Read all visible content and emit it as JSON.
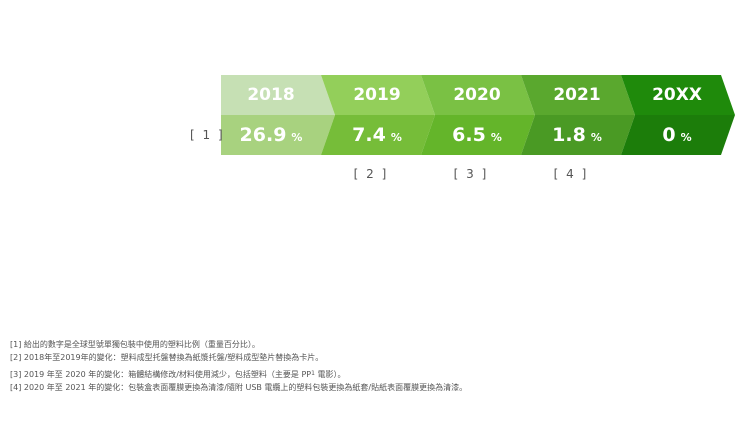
{
  "chart_data": {
    "type": "table",
    "years": [
      "2018",
      "2019",
      "2020",
      "2021",
      "20XX"
    ],
    "values": [
      "26.9",
      "7.4",
      "6.5",
      "1.8",
      "0"
    ],
    "unit": "%",
    "colors": {
      "top": [
        "#c6e0b4",
        "#93cf5a",
        "#7ac144",
        "#5aa82e",
        "#1f8a0b"
      ],
      "bottom": [
        "#a8d27f",
        "#76bd39",
        "#64b52a",
        "#4a9a24",
        "#1c7d0a"
      ]
    }
  },
  "row_label": "[ 1 ]",
  "note_refs": [
    {
      "label": "[ 2 ]",
      "column": 1
    },
    {
      "label": "[ 3 ]",
      "column": 2
    },
    {
      "label": "[ 4 ]",
      "column": 3
    }
  ],
  "footnotes": {
    "f1": "[1] 給出的數字是全球型號單獨包裝中使用的塑料比例（重量百分比）。",
    "f2": "[2] 2018年至2019年的變化：塑料成型托盤替換為紙漿托盤/塑料成型墊片替換為卡片。",
    "f3_pre": "[3] 2019 年至 2020 年的變化：箱體結構修改/材料使用減少，包括塑料（主要是 PP",
    "f3_sup": "1",
    "f3_post": " 電影）。",
    "f4": "[4] 2020 年至 2021 年的變化：包裝盒表面覆膜更換為清漆/隨附 USB 電纜上的塑料包裝更換為紙套/貼紙表面覆膜更換為清漆。"
  }
}
